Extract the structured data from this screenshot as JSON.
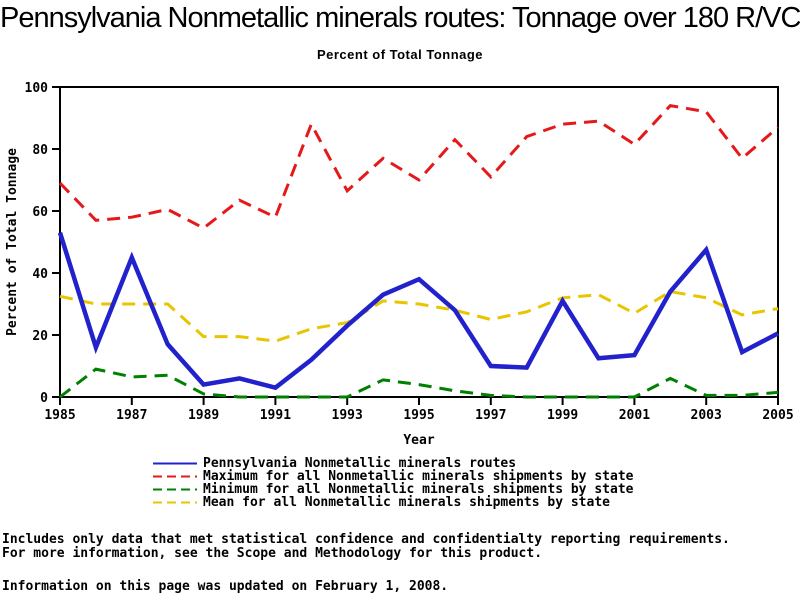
{
  "title": "Pennsylvania Nonmetallic minerals routes: Tonnage over 180 R/VC",
  "subtitle": "Percent of Total Tonnage",
  "chart_data": {
    "type": "line",
    "x": [
      1985,
      1986,
      1987,
      1988,
      1989,
      1990,
      1991,
      1992,
      1993,
      1994,
      1995,
      1996,
      1997,
      1998,
      1999,
      2000,
      2001,
      2002,
      2003,
      2004,
      2005
    ],
    "series": [
      {
        "name": "Pennsylvania Nonmetallic minerals routes",
        "color": "#2222cc",
        "style": "solid",
        "width": 4.5,
        "values": [
          53,
          16,
          45,
          17,
          4,
          6,
          3,
          12,
          23,
          33,
          38,
          28,
          10,
          9.5,
          31,
          12.5,
          13.5,
          34,
          47.5,
          14.5,
          20.5
        ]
      },
      {
        "name": "Maximum for all Nonmetallic minerals shipments by state",
        "color": "#e51919",
        "style": "dashed",
        "width": 3,
        "values": [
          69,
          57,
          58,
          60.5,
          54.5,
          63.5,
          58,
          88,
          66.5,
          77,
          70,
          83,
          71,
          84,
          88,
          89,
          81.5,
          94,
          92,
          77,
          87
        ]
      },
      {
        "name": "Minimum for all Nonmetallic minerals shipments by state",
        "color": "#008000",
        "style": "dashed",
        "width": 3,
        "values": [
          0,
          9,
          6.5,
          7,
          1,
          0,
          0,
          0,
          0,
          5.5,
          4,
          2,
          0.5,
          0,
          0,
          0,
          0,
          6,
          0.5,
          0.5,
          1.5
        ]
      },
      {
        "name": "Mean for all Nonmetallic minerals shipments by state",
        "color": "#e9c400",
        "style": "dashed",
        "width": 3,
        "values": [
          32.5,
          30,
          30,
          30,
          19.5,
          19.5,
          18,
          22,
          24,
          31,
          30,
          28,
          25,
          27.5,
          32,
          33,
          27,
          34,
          32,
          26.5,
          28.5
        ]
      }
    ],
    "xlabel": "Year",
    "ylabel": "Percent of Total Tonnage",
    "xlim": [
      1985,
      2005
    ],
    "ylim": [
      0,
      100
    ],
    "xticks": [
      1985,
      1987,
      1989,
      1991,
      1993,
      1995,
      1997,
      1999,
      2001,
      2003,
      2005
    ],
    "yticks": [
      0,
      20,
      40,
      60,
      80,
      100
    ],
    "grid": false,
    "legend_position": "bottom"
  },
  "footnotes": {
    "line1": "Includes only data that met statistical confidence and confidentialty reporting requirements.",
    "line2": "For more information, see the Scope and Methodology for this product.",
    "updated": "Information on this page was updated on February 1, 2008."
  }
}
